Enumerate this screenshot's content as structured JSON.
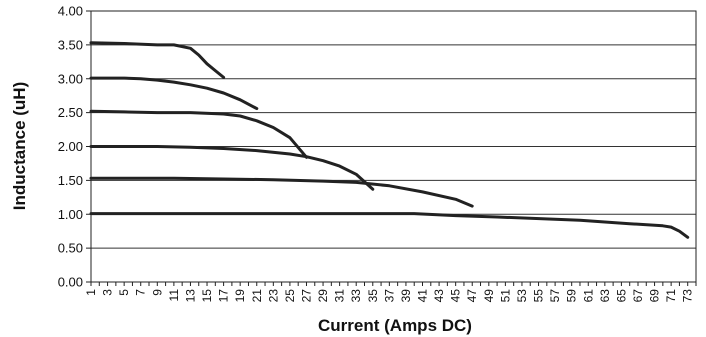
{
  "chart_data": {
    "type": "line",
    "title": "",
    "xlabel": "Current (Amps DC)",
    "ylabel": "Inductance (uH)",
    "xlim": [
      1,
      74
    ],
    "ylim": [
      0,
      4
    ],
    "y_ticks": [
      0,
      0.5,
      1.0,
      1.5,
      2.0,
      2.5,
      3.0,
      3.5,
      4.0
    ],
    "y_tick_labels": [
      "0.00",
      "0.50",
      "1.00",
      "1.50",
      "2.00",
      "2.50",
      "3.00",
      "3.50",
      "4.00"
    ],
    "x_tick_labels": [
      "1",
      "3",
      "5",
      "7",
      "9",
      "11",
      "13",
      "15",
      "17",
      "19",
      "21",
      "23",
      "25",
      "27",
      "29",
      "31",
      "33",
      "35",
      "37",
      "39",
      "41",
      "43",
      "45",
      "47",
      "49",
      "51",
      "53",
      "55",
      "57",
      "59",
      "61",
      "63",
      "65",
      "67",
      "69",
      "71",
      "73"
    ],
    "grid": "horizontal",
    "legend": "none",
    "line_color": "#222222",
    "series": [
      {
        "x": [
          1,
          5,
          9,
          11,
          13,
          14,
          15,
          16,
          17
        ],
        "y": [
          3.53,
          3.52,
          3.5,
          3.5,
          3.45,
          3.35,
          3.22,
          3.12,
          3.02
        ]
      },
      {
        "x": [
          1,
          5,
          7,
          9,
          11,
          13,
          15,
          17,
          19,
          21
        ],
        "y": [
          3.01,
          3.01,
          3.0,
          2.98,
          2.95,
          2.91,
          2.86,
          2.79,
          2.69,
          2.56
        ]
      },
      {
        "x": [
          1,
          5,
          9,
          13,
          17,
          19,
          21,
          23,
          25,
          27
        ],
        "y": [
          2.52,
          2.51,
          2.5,
          2.5,
          2.48,
          2.45,
          2.38,
          2.28,
          2.13,
          1.84
        ]
      },
      {
        "x": [
          1,
          5,
          9,
          13,
          17,
          21,
          25,
          27,
          29,
          31,
          33,
          35
        ],
        "y": [
          2.0,
          2.0,
          2.0,
          1.99,
          1.97,
          1.94,
          1.89,
          1.85,
          1.79,
          1.71,
          1.59,
          1.37
        ]
      },
      {
        "x": [
          1,
          5,
          11,
          17,
          23,
          29,
          33,
          37,
          41,
          45,
          47
        ],
        "y": [
          1.53,
          1.53,
          1.53,
          1.52,
          1.51,
          1.49,
          1.47,
          1.42,
          1.33,
          1.22,
          1.12
        ]
      },
      {
        "x": [
          1,
          10,
          20,
          30,
          40,
          45,
          50,
          60,
          66,
          70,
          71,
          72,
          73
        ],
        "y": [
          1.01,
          1.01,
          1.01,
          1.01,
          1.01,
          0.98,
          0.96,
          0.91,
          0.86,
          0.83,
          0.81,
          0.75,
          0.66
        ]
      }
    ]
  }
}
